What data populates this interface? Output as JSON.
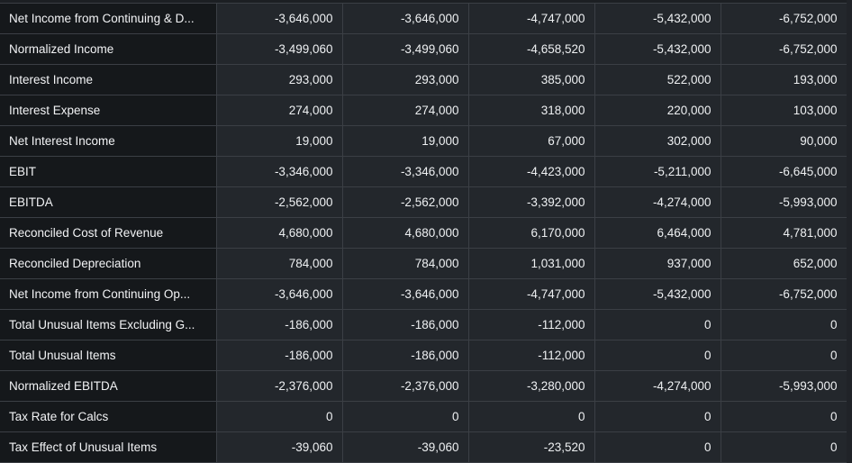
{
  "table": {
    "rows": [
      {
        "label": "Net Income from Continuing & D...",
        "values": [
          "-3,646,000",
          "-3,646,000",
          "-4,747,000",
          "-5,432,000",
          "-6,752,000"
        ]
      },
      {
        "label": "Normalized Income",
        "values": [
          "-3,499,060",
          "-3,499,060",
          "-4,658,520",
          "-5,432,000",
          "-6,752,000"
        ]
      },
      {
        "label": "Interest Income",
        "values": [
          "293,000",
          "293,000",
          "385,000",
          "522,000",
          "193,000"
        ]
      },
      {
        "label": "Interest Expense",
        "values": [
          "274,000",
          "274,000",
          "318,000",
          "220,000",
          "103,000"
        ]
      },
      {
        "label": "Net Interest Income",
        "values": [
          "19,000",
          "19,000",
          "67,000",
          "302,000",
          "90,000"
        ]
      },
      {
        "label": "EBIT",
        "values": [
          "-3,346,000",
          "-3,346,000",
          "-4,423,000",
          "-5,211,000",
          "-6,645,000"
        ]
      },
      {
        "label": "EBITDA",
        "values": [
          "-2,562,000",
          "-2,562,000",
          "-3,392,000",
          "-4,274,000",
          "-5,993,000"
        ]
      },
      {
        "label": "Reconciled Cost of Revenue",
        "values": [
          "4,680,000",
          "4,680,000",
          "6,170,000",
          "6,464,000",
          "4,781,000"
        ]
      },
      {
        "label": "Reconciled Depreciation",
        "values": [
          "784,000",
          "784,000",
          "1,031,000",
          "937,000",
          "652,000"
        ]
      },
      {
        "label": "Net Income from Continuing Op...",
        "values": [
          "-3,646,000",
          "-3,646,000",
          "-4,747,000",
          "-5,432,000",
          "-6,752,000"
        ]
      },
      {
        "label": "Total Unusual Items Excluding G...",
        "values": [
          "-186,000",
          "-186,000",
          "-112,000",
          "0",
          "0"
        ]
      },
      {
        "label": "Total Unusual Items",
        "values": [
          "-186,000",
          "-186,000",
          "-112,000",
          "0",
          "0"
        ]
      },
      {
        "label": "Normalized EBITDA",
        "values": [
          "-2,376,000",
          "-2,376,000",
          "-3,280,000",
          "-4,274,000",
          "-5,993,000"
        ]
      },
      {
        "label": "Tax Rate for Calcs",
        "values": [
          "0",
          "0",
          "0",
          "0",
          "0"
        ]
      },
      {
        "label": "Tax Effect of Unusual Items",
        "values": [
          "-39,060",
          "-39,060",
          "-23,520",
          "0",
          "0"
        ]
      }
    ]
  }
}
